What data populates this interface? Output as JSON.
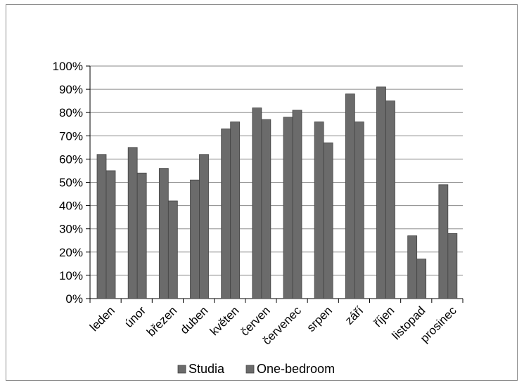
{
  "chart_data": {
    "type": "bar",
    "title": "",
    "xlabel": "",
    "ylabel": "",
    "categories": [
      "leden",
      "únor",
      "březen",
      "duben",
      "květen",
      "červen",
      "červenec",
      "srpen",
      "září",
      "říjen",
      "listopad",
      "prosinec"
    ],
    "series": [
      {
        "name": "Studia",
        "values": [
          62,
          65,
          56,
          51,
          73,
          82,
          78,
          76,
          88,
          91,
          27,
          49
        ]
      },
      {
        "name": "One-bedroom",
        "values": [
          55,
          54,
          42,
          62,
          76,
          77,
          81,
          67,
          76,
          85,
          17,
          28
        ]
      }
    ],
    "ylim": [
      0,
      100
    ],
    "y_ticks": [
      "0%",
      "10%",
      "20%",
      "30%",
      "40%",
      "50%",
      "60%",
      "70%",
      "80%",
      "90%",
      "100%"
    ],
    "grid": "horizontal",
    "legend_position": "bottom",
    "colors": {
      "Studia": "#6b6b6b",
      "One-bedroom": "#6b6b6b",
      "gridline": "#8a8a8a",
      "bar_edge": "#444444"
    }
  }
}
